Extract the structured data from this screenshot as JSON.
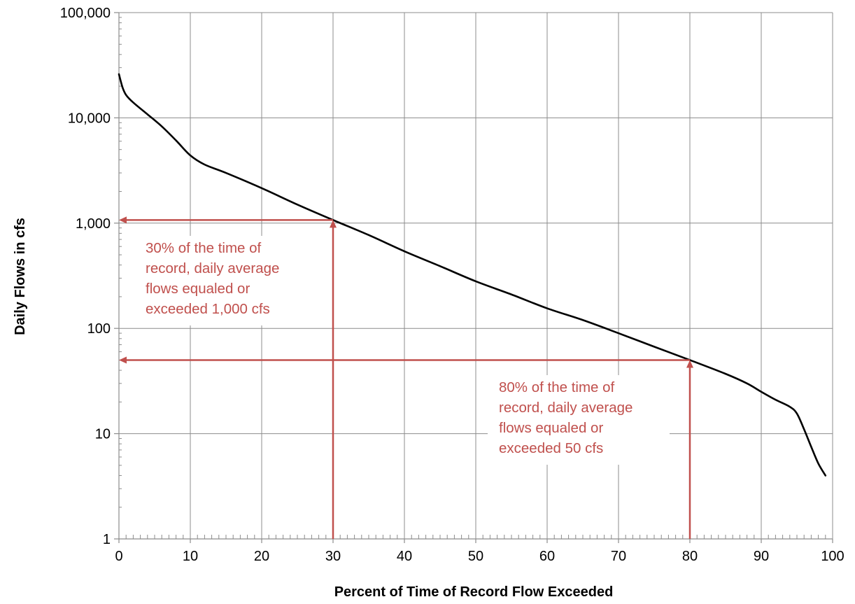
{
  "chart_data": {
    "type": "line",
    "xlabel": "Percent of Time of Record Flow Exceeded",
    "ylabel": "Daily Flows in cfs",
    "x_scale": "linear",
    "y_scale": "log",
    "xlim": [
      0,
      100
    ],
    "ylim": [
      1,
      100000
    ],
    "x_ticks": [
      0,
      10,
      20,
      30,
      40,
      50,
      60,
      70,
      80,
      90,
      100
    ],
    "x_tick_labels": [
      "0",
      "10",
      "20",
      "30",
      "40",
      "50",
      "60",
      "70",
      "80",
      "90",
      "100"
    ],
    "y_ticks": [
      1,
      10,
      100,
      1000,
      10000,
      100000
    ],
    "y_tick_labels": [
      "1",
      "10",
      "100",
      "1,000",
      "10,000",
      "100,000"
    ],
    "grid": true,
    "series": [
      {
        "color": "#000000",
        "x": [
          0,
          0.5,
          1,
          2,
          4,
          6,
          8,
          10,
          12,
          15,
          20,
          25,
          30,
          35,
          40,
          45,
          50,
          55,
          60,
          65,
          70,
          75,
          80,
          85,
          88,
          90,
          92,
          94,
          95,
          96,
          97,
          98,
          99
        ],
        "y": [
          26000,
          19500,
          16500,
          14000,
          10800,
          8300,
          6100,
          4400,
          3600,
          3000,
          2150,
          1500,
          1070,
          770,
          540,
          390,
          280,
          210,
          155,
          120,
          90,
          67,
          50,
          37,
          30,
          25,
          21,
          18,
          15.5,
          11,
          7.5,
          5.2,
          4
        ]
      }
    ],
    "annotations": [
      {
        "lines": [
          "30% of the time of",
          "record, daily average",
          "flows equaled or",
          "exceeded 1,000 cfs"
        ],
        "x": 30,
        "y": 1070,
        "color": "#c0504d"
      },
      {
        "lines": [
          "80% of the time of",
          "record, daily average",
          "flows equaled or",
          "exceeded 50 cfs"
        ],
        "x": 80,
        "y": 50,
        "color": "#c0504d"
      }
    ]
  }
}
